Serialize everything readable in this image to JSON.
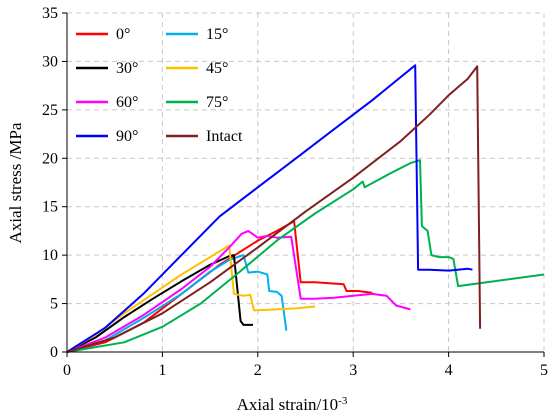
{
  "chart_data": {
    "type": "line",
    "xlabel": "Axial strain/10",
    "xlabel_exponent": "-3",
    "ylabel": "Axial stress /MPa",
    "xlim": [
      0,
      5
    ],
    "ylim": [
      0,
      35
    ],
    "x_ticks": [
      0,
      1,
      2,
      3,
      4,
      5
    ],
    "y_ticks": [
      0,
      5,
      10,
      15,
      20,
      25,
      30,
      35
    ],
    "grid": true,
    "legend_position": "top-left",
    "series": [
      {
        "name": "0°",
        "color": "#ff0000",
        "points": [
          [
            0,
            0
          ],
          [
            0.4,
            1
          ],
          [
            0.8,
            3
          ],
          [
            1.2,
            6
          ],
          [
            1.6,
            9
          ],
          [
            2.0,
            11.5
          ],
          [
            2.2,
            12.5
          ],
          [
            2.38,
            13.5
          ],
          [
            2.45,
            7.2
          ],
          [
            2.6,
            7.2
          ],
          [
            2.75,
            7.1
          ],
          [
            2.9,
            7.0
          ],
          [
            2.93,
            6.3
          ],
          [
            3.05,
            6.3
          ],
          [
            3.2,
            6.1
          ]
        ]
      },
      {
        "name": "15°",
        "color": "#00b0f0",
        "points": [
          [
            0,
            0
          ],
          [
            0.4,
            1.2
          ],
          [
            0.8,
            3.5
          ],
          [
            1.2,
            6
          ],
          [
            1.5,
            8.3
          ],
          [
            1.7,
            9.5
          ],
          [
            1.85,
            10
          ],
          [
            1.9,
            8.2
          ],
          [
            2.0,
            8.3
          ],
          [
            2.1,
            8.0
          ],
          [
            2.12,
            6.3
          ],
          [
            2.2,
            6.2
          ],
          [
            2.25,
            5.8
          ],
          [
            2.3,
            2.2
          ]
        ]
      },
      {
        "name": "30°",
        "color": "#000000",
        "points": [
          [
            0,
            0
          ],
          [
            0.3,
            1.5
          ],
          [
            0.6,
            3.6
          ],
          [
            0.9,
            5.5
          ],
          [
            1.2,
            7.3
          ],
          [
            1.5,
            9
          ],
          [
            1.7,
            9.9
          ],
          [
            1.75,
            10
          ],
          [
            1.82,
            3.2
          ],
          [
            1.85,
            2.8
          ],
          [
            1.95,
            2.8
          ]
        ]
      },
      {
        "name": "45°",
        "color": "#ffc000",
        "points": [
          [
            0,
            0
          ],
          [
            0.3,
            1.8
          ],
          [
            0.6,
            4
          ],
          [
            0.9,
            6
          ],
          [
            1.2,
            8
          ],
          [
            1.5,
            9.8
          ],
          [
            1.7,
            11
          ],
          [
            1.75,
            6
          ],
          [
            1.85,
            5.8
          ],
          [
            1.92,
            5.9
          ],
          [
            1.96,
            4.3
          ],
          [
            2.2,
            4.4
          ],
          [
            2.4,
            4.5
          ],
          [
            2.6,
            4.7
          ]
        ]
      },
      {
        "name": "60°",
        "color": "#ff00ff",
        "points": [
          [
            0,
            0
          ],
          [
            0.4,
            1.5
          ],
          [
            0.8,
            3.8
          ],
          [
            1.2,
            6.5
          ],
          [
            1.5,
            8.8
          ],
          [
            1.7,
            10.8
          ],
          [
            1.83,
            12.2
          ],
          [
            1.9,
            12.5
          ],
          [
            2.0,
            11.8
          ],
          [
            2.1,
            12
          ],
          [
            2.2,
            11.8
          ],
          [
            2.35,
            11.9
          ],
          [
            2.45,
            5.5
          ],
          [
            2.6,
            5.5
          ],
          [
            2.8,
            5.6
          ],
          [
            3.0,
            5.8
          ],
          [
            3.2,
            6
          ],
          [
            3.35,
            5.8
          ],
          [
            3.45,
            4.8
          ],
          [
            3.6,
            4.4
          ]
        ]
      },
      {
        "name": "75°",
        "color": "#00b050",
        "points": [
          [
            0,
            0
          ],
          [
            0.6,
            1
          ],
          [
            1.0,
            2.6
          ],
          [
            1.4,
            5
          ],
          [
            1.8,
            8.2
          ],
          [
            2.2,
            11.5
          ],
          [
            2.6,
            14.3
          ],
          [
            3.0,
            16.8
          ],
          [
            3.1,
            17.6
          ],
          [
            3.12,
            17
          ],
          [
            3.4,
            18.5
          ],
          [
            3.6,
            19.5
          ],
          [
            3.7,
            19.8
          ],
          [
            3.72,
            13
          ],
          [
            3.78,
            12.5
          ],
          [
            3.82,
            10
          ],
          [
            3.9,
            9.8
          ],
          [
            4.0,
            9.8
          ],
          [
            4.05,
            9.6
          ],
          [
            4.1,
            6.8
          ],
          [
            4.4,
            7.2
          ],
          [
            4.7,
            7.6
          ],
          [
            5.0,
            8.0
          ]
        ]
      },
      {
        "name": "90°",
        "color": "#0000ff",
        "points": [
          [
            0,
            0
          ],
          [
            0.4,
            2.5
          ],
          [
            0.8,
            6
          ],
          [
            1.2,
            10
          ],
          [
            1.6,
            14
          ],
          [
            2.0,
            17
          ],
          [
            2.4,
            20
          ],
          [
            2.8,
            23
          ],
          [
            3.2,
            26
          ],
          [
            3.6,
            29.2
          ],
          [
            3.65,
            29.6
          ],
          [
            3.68,
            8.5
          ],
          [
            3.8,
            8.5
          ],
          [
            4.0,
            8.4
          ],
          [
            4.2,
            8.6
          ],
          [
            4.25,
            8.5
          ]
        ]
      },
      {
        "name": "Intact",
        "color": "#7f1f1f",
        "points": [
          [
            0,
            0
          ],
          [
            0.5,
            1.5
          ],
          [
            1.0,
            4
          ],
          [
            1.5,
            7.2
          ],
          [
            2.0,
            10.8
          ],
          [
            2.5,
            14.5
          ],
          [
            3.0,
            18
          ],
          [
            3.5,
            21.8
          ],
          [
            3.8,
            24.5
          ],
          [
            4.0,
            26.5
          ],
          [
            4.2,
            28.2
          ],
          [
            4.3,
            29.5
          ],
          [
            4.33,
            2.4
          ]
        ]
      }
    ]
  }
}
